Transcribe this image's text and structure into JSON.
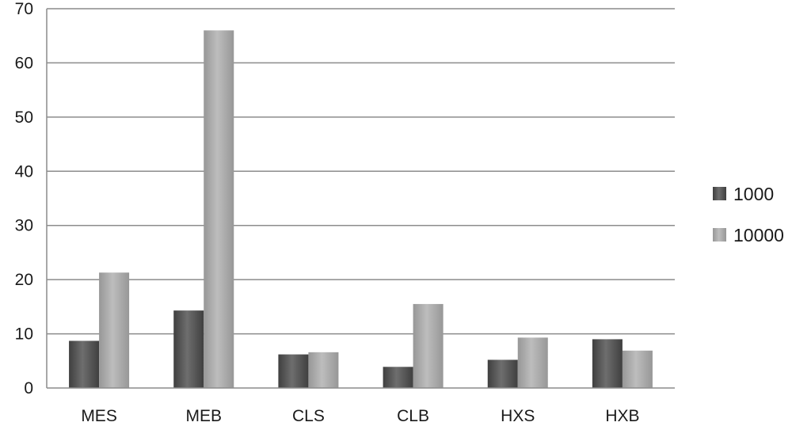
{
  "chart_data": {
    "type": "bar",
    "title": "",
    "xlabel": "",
    "ylabel": "",
    "categories": [
      "MES",
      "MEB",
      "CLS",
      "CLB",
      "HXS",
      "HXB"
    ],
    "series": [
      {
        "name": "1000",
        "color": "#595959",
        "values": [
          8.7,
          14.3,
          6.2,
          3.9,
          5.2,
          9.0
        ]
      },
      {
        "name": "10000",
        "color": "#a6a6a6",
        "values": [
          21.3,
          66.0,
          6.6,
          15.5,
          9.3,
          6.9
        ]
      }
    ],
    "ylim": [
      0,
      70
    ],
    "yticks": [
      0,
      10,
      20,
      30,
      40,
      50,
      60,
      70
    ],
    "grid": true,
    "legend_position": "right"
  }
}
